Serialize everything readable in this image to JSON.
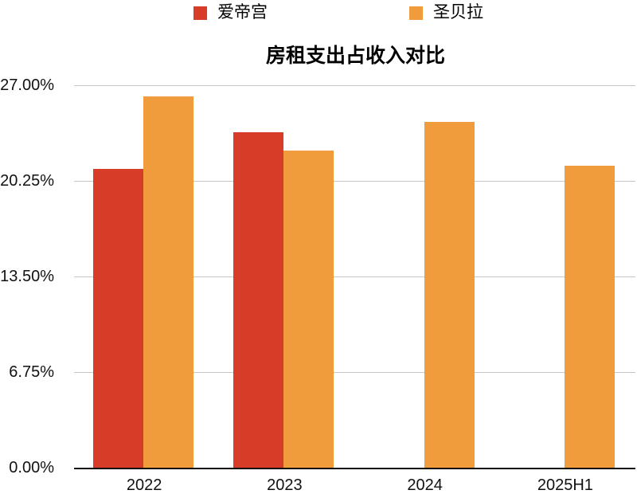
{
  "title": "房租支出占收入对比",
  "legend": {
    "items": [
      {
        "label": "爱帝宫",
        "color": "#d63c28"
      },
      {
        "label": "圣贝拉",
        "color": "#f09c3c"
      }
    ]
  },
  "chart_data": {
    "type": "bar",
    "title": "房租支出占收入对比",
    "categories": [
      "2022",
      "2023",
      "2024",
      "2025H1"
    ],
    "series": [
      {
        "name": "爱帝宫",
        "key": "aidigong",
        "color": "#d63c28",
        "values": [
          21.1,
          23.7,
          null,
          null
        ]
      },
      {
        "name": "圣贝拉",
        "key": "shengbeila",
        "color": "#f09c3c",
        "values": [
          26.2,
          22.4,
          24.4,
          21.3
        ]
      }
    ],
    "unit": "%",
    "xlabel": "",
    "ylabel": "",
    "ylim": [
      0,
      27
    ],
    "y_ticks": [
      {
        "label": "0.00%",
        "value": 0
      },
      {
        "label": "6.75%",
        "value": 6.75
      },
      {
        "label": "13.50%",
        "value": 13.5
      },
      {
        "label": "20.25%",
        "value": 20.25
      },
      {
        "label": "27.00%",
        "value": 27
      }
    ],
    "grid": true,
    "legend_position": "top"
  },
  "colors": {
    "grid": "#c6c6c6",
    "axis": "#111111",
    "text": "#000000",
    "background": "#ffffff"
  }
}
